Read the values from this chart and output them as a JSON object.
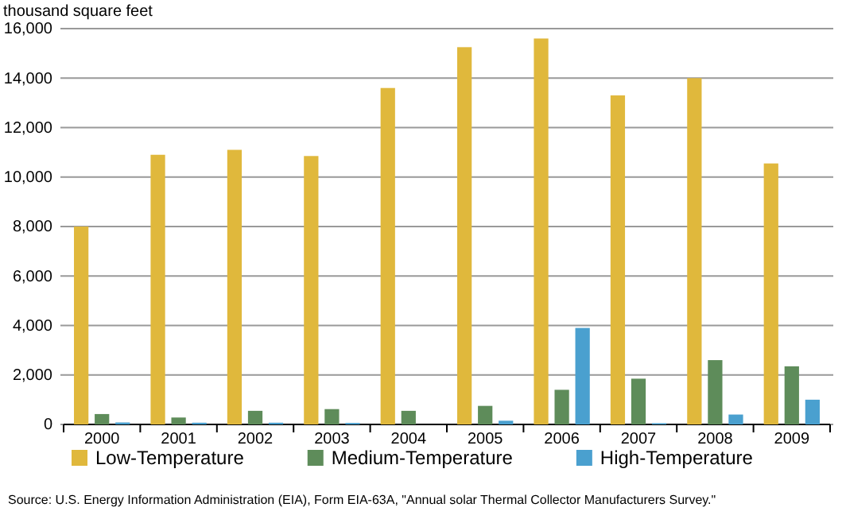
{
  "chart_data": {
    "type": "bar",
    "ylabel": "thousand square feet",
    "categories": [
      "2000",
      "2001",
      "2002",
      "2003",
      "2004",
      "2005",
      "2006",
      "2007",
      "2008",
      "2009"
    ],
    "series": [
      {
        "name": "Low-Temperature",
        "color": "#e0b83c",
        "values": [
          8000,
          10900,
          11100,
          10850,
          13600,
          15250,
          15600,
          13300,
          14000,
          10550
        ]
      },
      {
        "name": "Medium-Temperature",
        "color": "#5e8c5a",
        "values": [
          420,
          280,
          550,
          620,
          550,
          750,
          1400,
          1850,
          2600,
          2350
        ]
      },
      {
        "name": "High-Temperature",
        "color": "#4aa0cf",
        "values": [
          80,
          70,
          70,
          60,
          0,
          150,
          3900,
          50,
          400,
          1000
        ]
      }
    ],
    "ylim": [
      0,
      16000
    ],
    "yticks": [
      {
        "value": 0,
        "label": "0"
      },
      {
        "value": 2000,
        "label": "2,000"
      },
      {
        "value": 4000,
        "label": "4,000"
      },
      {
        "value": 6000,
        "label": "6,000"
      },
      {
        "value": 8000,
        "label": "8,000"
      },
      {
        "value": 10000,
        "label": "10,000"
      },
      {
        "value": 12000,
        "label": "12,000"
      },
      {
        "value": 14000,
        "label": "14,000"
      },
      {
        "value": 16000,
        "label": "16,000"
      }
    ],
    "grid": "y",
    "legend": "bottom",
    "annotations": [
      "Source: U.S. Energy Information Administration (EIA), Form EIA-63A, \"Annual solar Thermal Collector Manufacturers Survey.\""
    ]
  }
}
